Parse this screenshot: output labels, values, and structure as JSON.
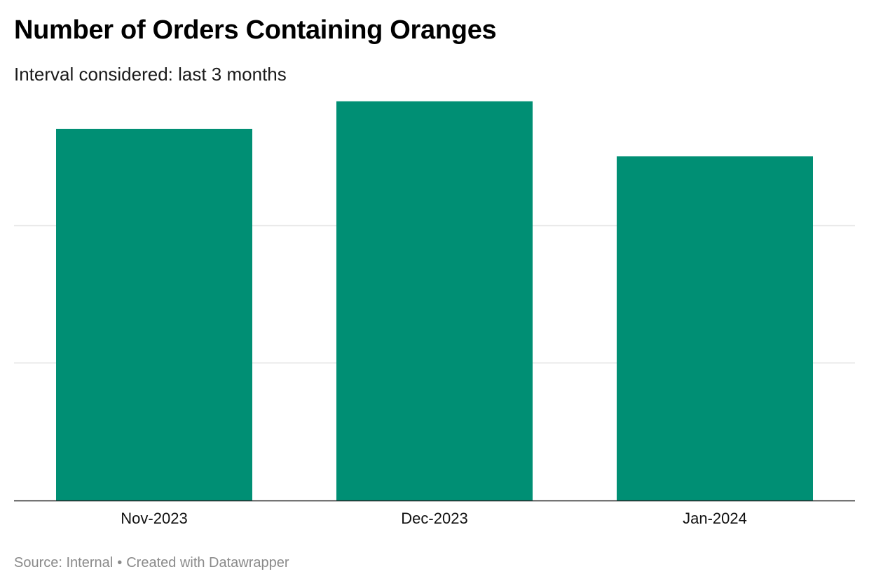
{
  "chart_data": {
    "type": "bar",
    "title": "Number of Orders Containing Oranges",
    "subtitle": "Interval considered: last 3 months",
    "categories": [
      "Nov-2023",
      "Dec-2023",
      "Jan-2024"
    ],
    "values": [
      2.7,
      2.9,
      2.5
    ],
    "ylim": [
      0,
      3
    ],
    "gridlines": [
      1,
      2
    ],
    "grid": true,
    "xlabel": "",
    "ylabel": "",
    "legend": "none",
    "bar_color": "#008f74"
  },
  "footer": {
    "source": "Source: Internal",
    "separator": "•",
    "credit": "Created with Datawrapper"
  }
}
